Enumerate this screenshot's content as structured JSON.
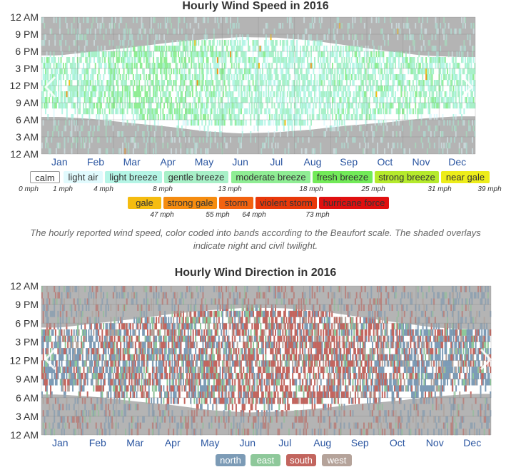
{
  "speed_chart": {
    "title": "Hourly Wind Speed in 2016",
    "caption": "The hourly reported wind speed, color coded into bands according to the Beaufort scale. The shaded overlays indicate night and civil twilight.",
    "legend_bands": [
      {
        "label": "calm",
        "color": "#ffffff"
      },
      {
        "label": "light air",
        "color": "#e1fafd"
      },
      {
        "label": "light breeze",
        "color": "#b5f5e6"
      },
      {
        "label": "gentle breeze",
        "color": "#a8f0c8"
      },
      {
        "label": "moderate breeze",
        "color": "#8fed94"
      },
      {
        "label": "fresh breeze",
        "color": "#72ea58"
      },
      {
        "label": "strong breeze",
        "color": "#b5ea2c"
      },
      {
        "label": "near gale",
        "color": "#eded1a"
      },
      {
        "label": "gale",
        "color": "#f5bc10"
      },
      {
        "label": "strong gale",
        "color": "#f58c10"
      },
      {
        "label": "storm",
        "color": "#f26210"
      },
      {
        "label": "violent storm",
        "color": "#e8380a"
      },
      {
        "label": "hurricane force",
        "color": "#e01010"
      }
    ],
    "legend_thresholds": [
      "0 mph",
      "1 mph",
      "4 mph",
      "8 mph",
      "13 mph",
      "18 mph",
      "25 mph",
      "31 mph",
      "39 mph",
      "47 mph",
      "55 mph",
      "64 mph",
      "73 mph"
    ]
  },
  "direction_chart": {
    "title": "Hourly Wind Direction in 2016",
    "legend": [
      {
        "label": "north",
        "color": "#7c9bb6"
      },
      {
        "label": "east",
        "color": "#8ec89a"
      },
      {
        "label": "south",
        "color": "#c2655e"
      },
      {
        "label": "west",
        "color": "#b5a39a"
      }
    ]
  },
  "chart_data": [
    {
      "type": "heatmap",
      "title": "Hourly Wind Speed in 2016",
      "x_ticks": [
        "Jan",
        "Feb",
        "Mar",
        "Apr",
        "May",
        "Jun",
        "Jul",
        "Aug",
        "Sep",
        "Oct",
        "Nov",
        "Dec"
      ],
      "y_ticks": [
        "12 AM",
        "3 AM",
        "6 AM",
        "9 AM",
        "12 PM",
        "3 PM",
        "6 PM",
        "9 PM",
        "12 AM"
      ],
      "y_range_hours": [
        0,
        24
      ],
      "daylight_sunrise_hour_by_month": [
        7.2,
        6.8,
        6.1,
        5.5,
        4.7,
        4.3,
        4.5,
        5.0,
        5.7,
        6.2,
        6.9,
        7.3
      ],
      "daylight_sunset_hour_by_month": [
        16.6,
        17.3,
        18.0,
        18.8,
        19.4,
        19.8,
        19.7,
        19.2,
        18.3,
        17.4,
        16.6,
        16.3
      ],
      "typical_day_speed_mph_by_month": [
        9,
        10,
        12,
        12,
        11,
        9,
        8,
        8,
        9,
        10,
        10,
        9
      ],
      "typical_night_speed_mph_by_month": [
        5,
        6,
        6,
        6,
        4,
        3,
        3,
        3,
        4,
        5,
        5,
        5
      ]
    },
    {
      "type": "heatmap",
      "title": "Hourly Wind Direction in 2016",
      "x_ticks": [
        "Jan",
        "Feb",
        "Mar",
        "Apr",
        "May",
        "Jun",
        "Jul",
        "Aug",
        "Sep",
        "Oct",
        "Nov",
        "Dec"
      ],
      "y_ticks": [
        "12 AM",
        "3 AM",
        "6 AM",
        "9 AM",
        "12 PM",
        "3 PM",
        "6 PM",
        "9 PM",
        "12 AM"
      ],
      "y_range_hours": [
        0,
        24
      ],
      "categories": [
        "north",
        "east",
        "south",
        "west"
      ],
      "dominant_direction_share_by_month": {
        "north": [
          0.55,
          0.5,
          0.45,
          0.4,
          0.35,
          0.25,
          0.2,
          0.2,
          0.3,
          0.5,
          0.55,
          0.6
        ],
        "east": [
          0.1,
          0.1,
          0.15,
          0.15,
          0.15,
          0.15,
          0.1,
          0.1,
          0.1,
          0.1,
          0.1,
          0.1
        ],
        "south": [
          0.25,
          0.3,
          0.3,
          0.35,
          0.4,
          0.5,
          0.6,
          0.6,
          0.5,
          0.3,
          0.25,
          0.2
        ],
        "west": [
          0.1,
          0.1,
          0.1,
          0.1,
          0.1,
          0.1,
          0.1,
          0.1,
          0.1,
          0.1,
          0.1,
          0.1
        ]
      }
    }
  ]
}
